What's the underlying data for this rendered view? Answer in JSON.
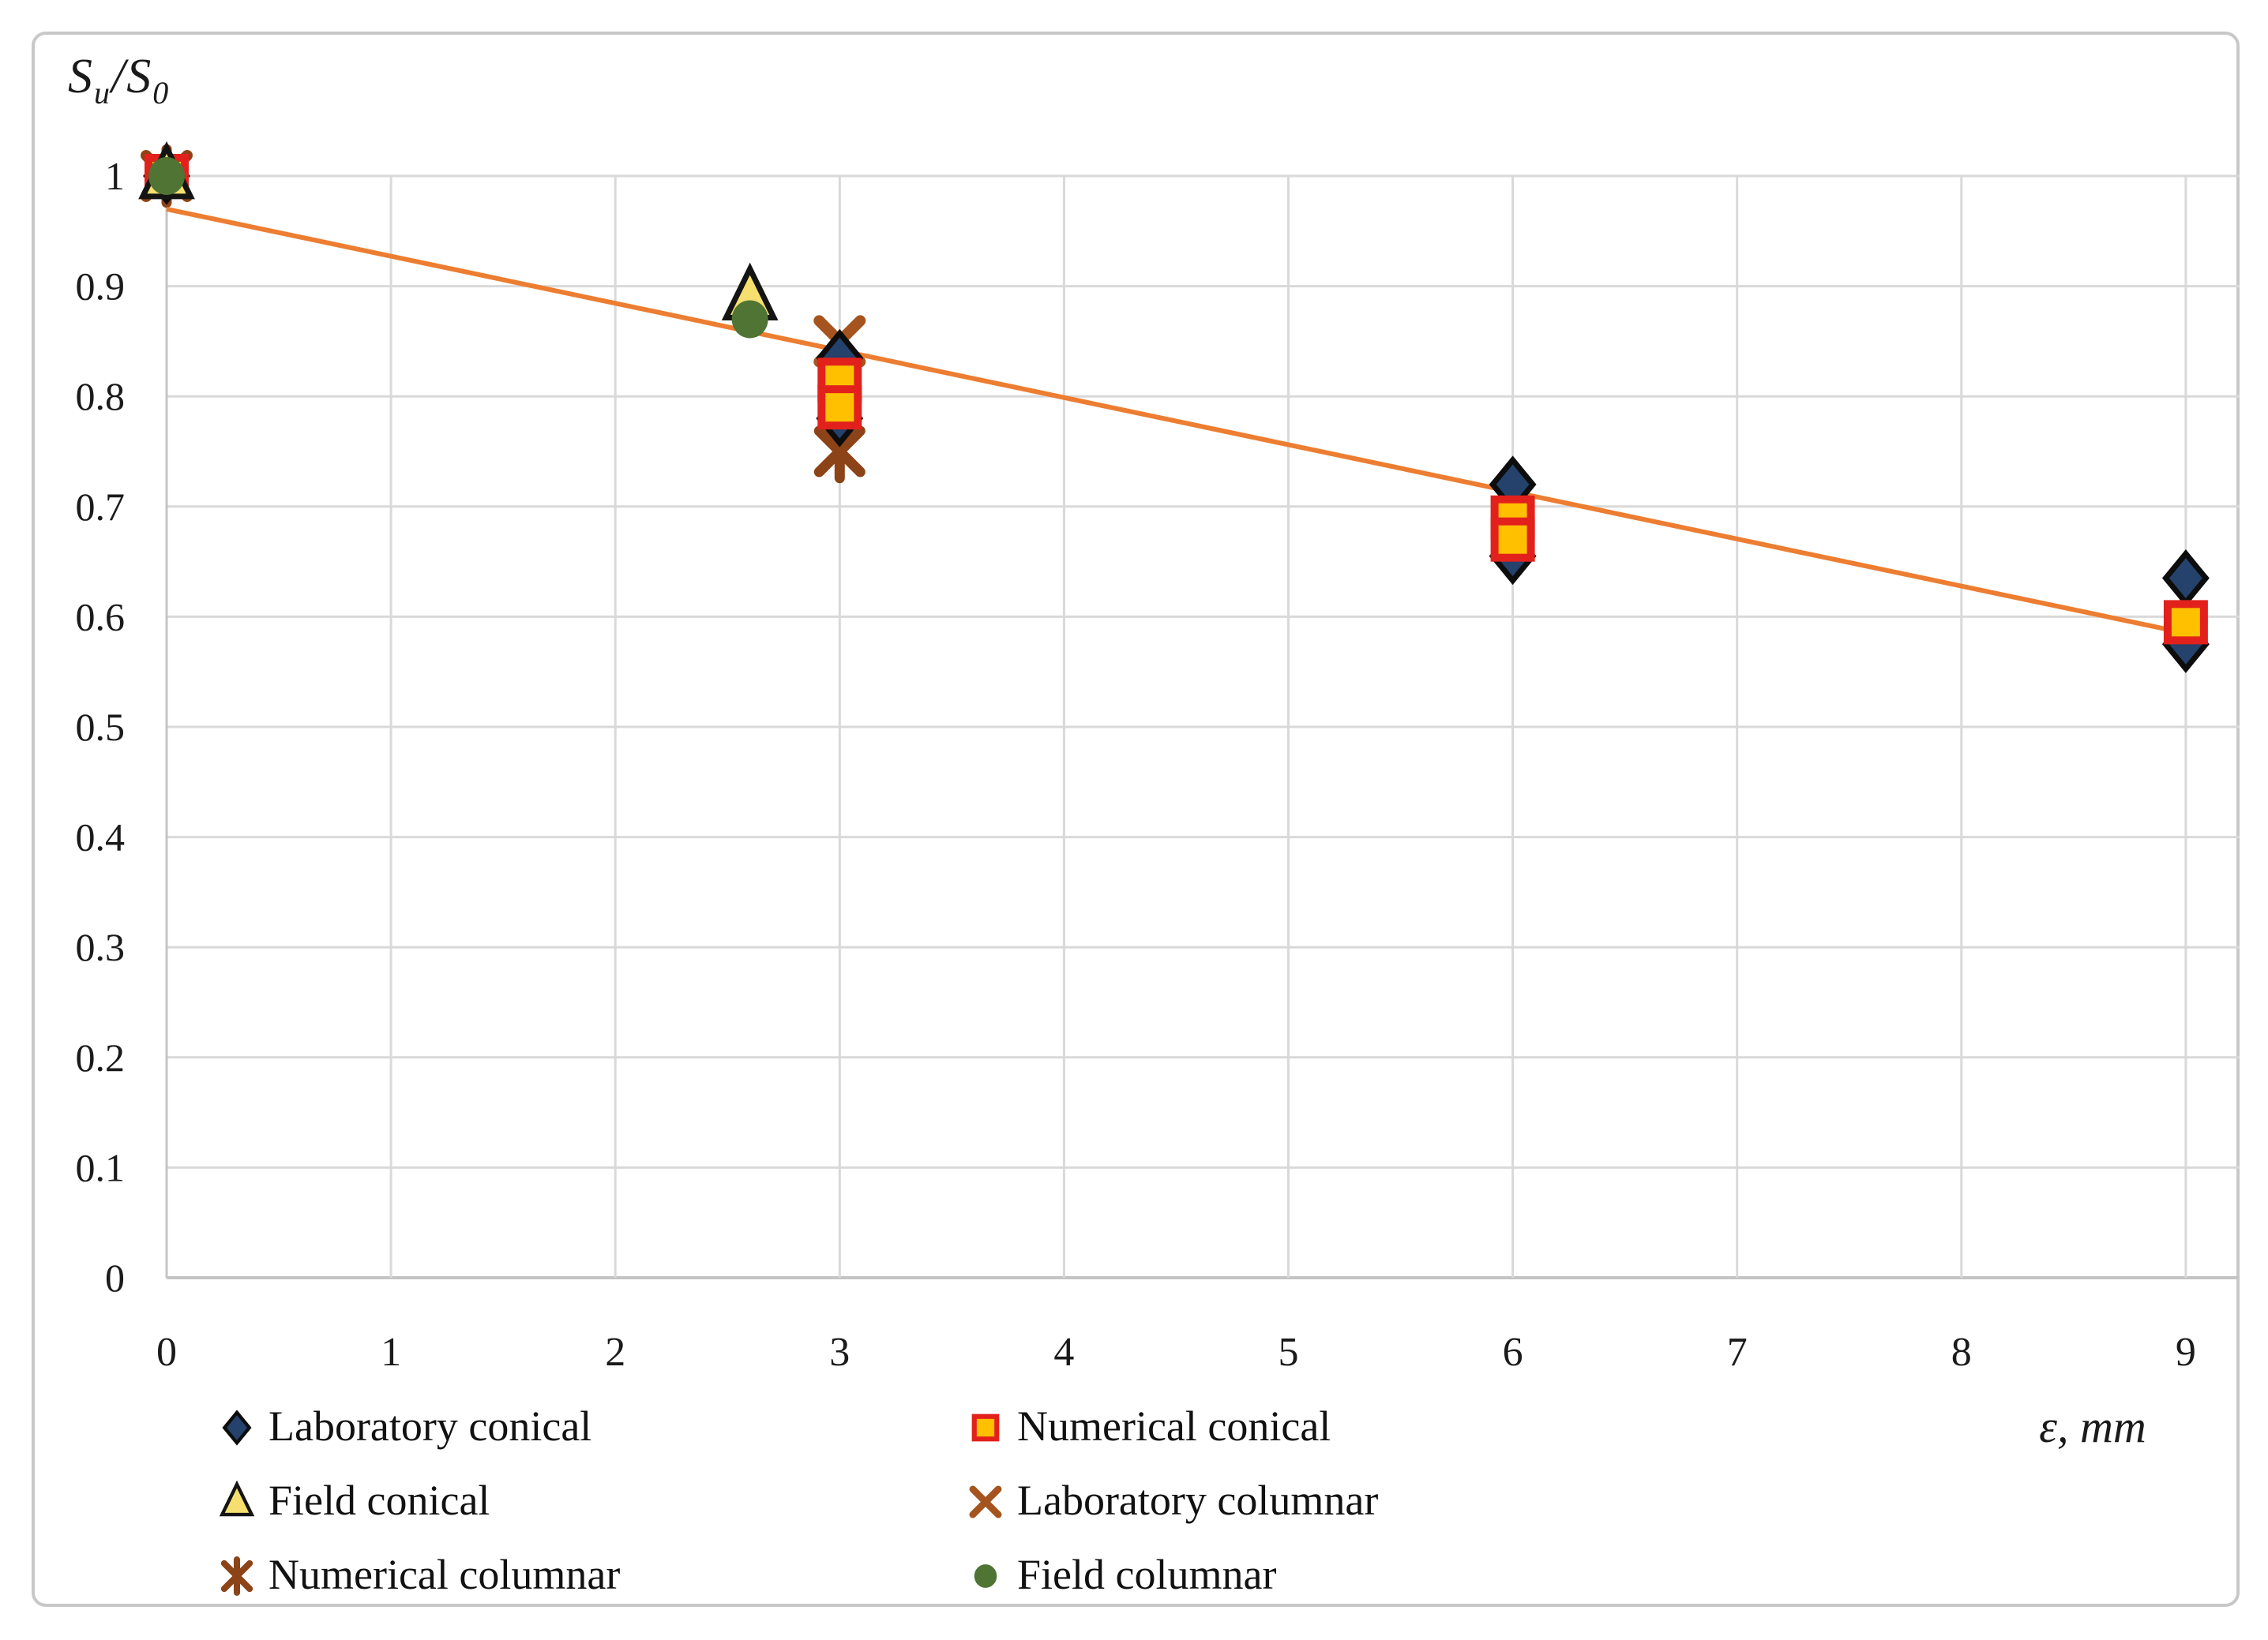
{
  "figure": {
    "y_axis_title": {
      "s1": "S",
      "s1_sub": "u",
      "separator": "/",
      "s2": "S",
      "s2_sub": "0"
    },
    "x_axis_title": "ε, mm"
  },
  "chart_data": {
    "type": "scatter",
    "title": "",
    "xlabel": "ε, mm",
    "ylabel": "Su/S0",
    "xlim": [
      0,
      9.25
    ],
    "ylim": [
      0,
      1.06
    ],
    "grid": true,
    "legend_position": "bottom, two columns",
    "x_tick_labels": [
      "0",
      "1",
      "2",
      "3",
      "4",
      "5",
      "6",
      "7",
      "8",
      "9"
    ],
    "y_tick_labels": [
      "1",
      "0.9",
      "0.8",
      "0.7",
      "0.6",
      "0.5",
      "0.4",
      "0.3",
      "0.2",
      "0.1",
      "0"
    ],
    "series": [
      {
        "name": "Laboratory conical",
        "marker": "diamond",
        "fill": "#24426b",
        "stroke": "#0d0d0d",
        "points": [
          [
            0,
            1.0
          ],
          [
            3,
            0.835
          ],
          [
            3,
            0.78
          ],
          [
            6,
            0.72
          ],
          [
            6,
            0.655
          ],
          [
            9,
            0.635
          ],
          [
            9,
            0.575
          ]
        ]
      },
      {
        "name": "Numerical conical",
        "marker": "square",
        "fill": "#ffc000",
        "stroke": "#e2211c",
        "points": [
          [
            0,
            1.0
          ],
          [
            3,
            0.815
          ],
          [
            3,
            0.79
          ],
          [
            6,
            0.69
          ],
          [
            6,
            0.67
          ],
          [
            9,
            0.595
          ]
        ]
      },
      {
        "name": "Field conical",
        "marker": "triangle",
        "fill": "#f6df6f",
        "stroke": "#141414",
        "points": [
          [
            0,
            1.0
          ],
          [
            2.6,
            0.89
          ]
        ]
      },
      {
        "name": "Laboratory columnar",
        "marker": "x",
        "fill": "#a5541f",
        "stroke": "#a5541f",
        "points": [
          [
            0,
            1.0
          ],
          [
            3,
            0.85
          ]
        ]
      },
      {
        "name": "Numerical columnar",
        "marker": "star",
        "fill": "#8c4318",
        "stroke": "#8c4318",
        "points": [
          [
            0,
            1.0
          ],
          [
            3,
            0.75
          ]
        ]
      },
      {
        "name": "Field columnar",
        "marker": "circle",
        "fill": "#4f7433",
        "stroke": "#4f7433",
        "points": [
          [
            0,
            1.0
          ],
          [
            2.6,
            0.87
          ]
        ]
      }
    ],
    "trendline": {
      "from": [
        0,
        0.97
      ],
      "to": [
        9,
        0.585
      ],
      "color": "#ED7D31"
    },
    "colors": {
      "gridline": "#d9d9d9",
      "axis_line": "#c4c4c4",
      "frame_border": "#c8c8c8",
      "text": "#1a1a1a"
    }
  }
}
